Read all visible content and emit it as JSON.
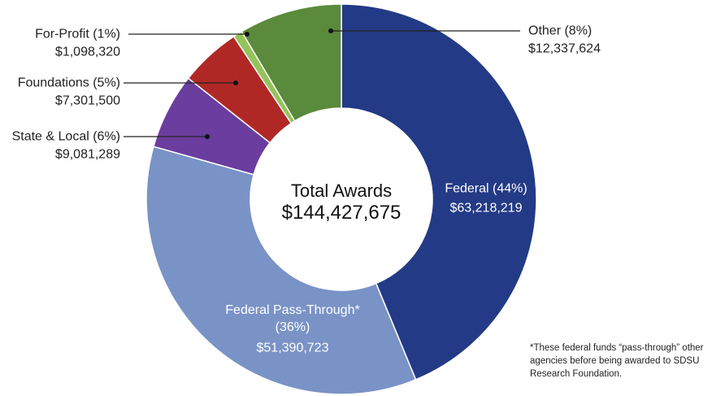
{
  "chart_data": {
    "type": "donut",
    "title": "Total Awards",
    "total": 144427675,
    "total_label": "$144,427,675",
    "categories": [
      "Federal (44%)",
      "Federal Pass-Through* (36%)",
      "State & Local (6%)",
      "Foundations (5%)",
      "For-Profit (1%)",
      "Other (8%)"
    ],
    "values": [
      63218219,
      51390723,
      9081289,
      7301500,
      1098320,
      12337624
    ],
    "value_labels": [
      "$63,218,219",
      "$51,390,723",
      "$9,081,289",
      "$7,301,500",
      "$1,098,320",
      "$12,337,624"
    ],
    "colors": [
      "#233a86",
      "#7a93c6",
      "#6b3d9e",
      "#b02826",
      "#93c45a",
      "#5a8a3b"
    ],
    "footnote": "*These federal funds “pass-through” other agencies before being awarded to SDSU Research Foundation."
  }
}
